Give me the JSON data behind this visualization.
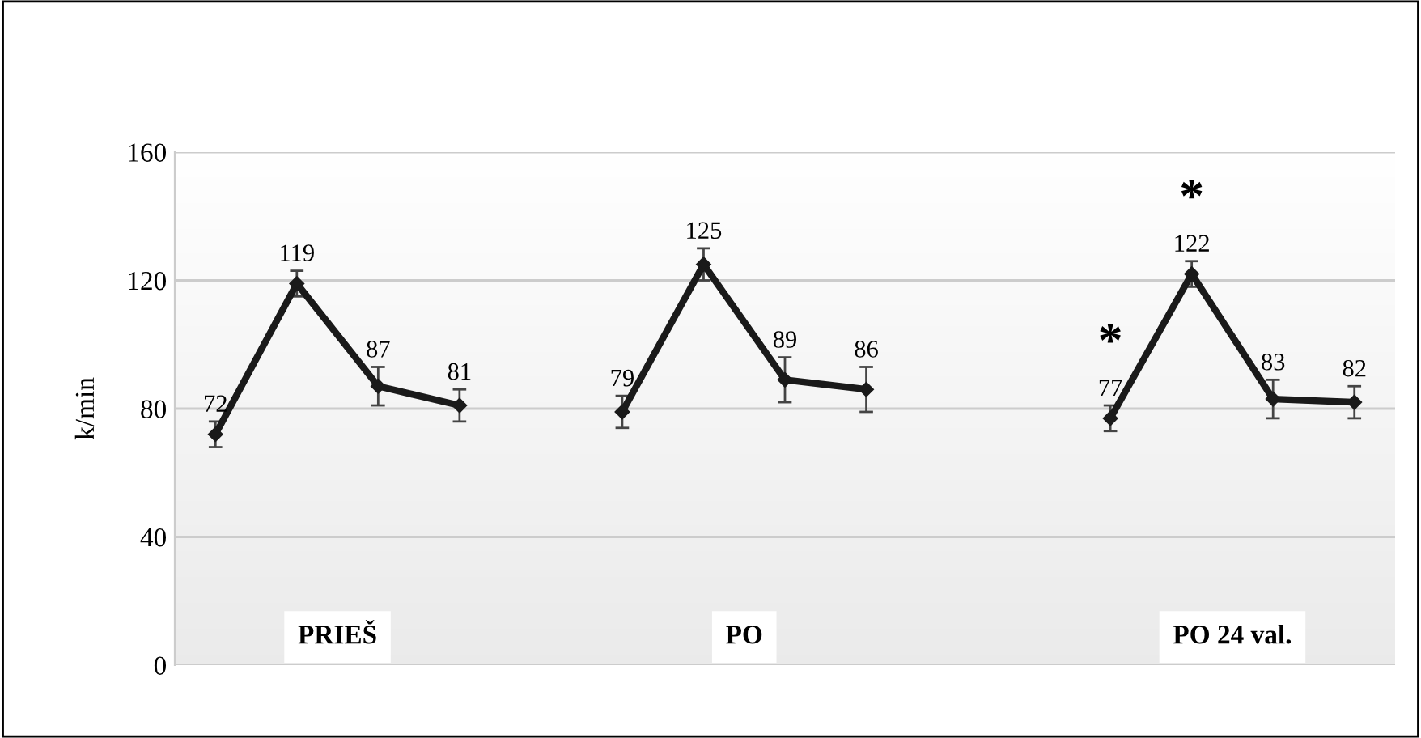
{
  "chart_data": {
    "type": "line",
    "ylabel": "k/min",
    "categories": [
      null,
      null,
      null,
      null,
      null,
      null,
      null,
      null,
      null,
      null,
      null,
      null,
      null,
      null,
      null
    ],
    "series": [
      {
        "color": "#1a1a1a",
        "values": [
          72,
          119,
          87,
          81,
          null,
          79,
          125,
          89,
          86,
          null,
          null,
          77,
          122,
          83,
          82
        ],
        "errors": [
          4,
          4,
          6,
          5,
          null,
          5,
          5,
          7,
          7,
          null,
          null,
          4,
          4,
          6,
          5
        ]
      }
    ],
    "ylim": [
      0,
      160
    ],
    "yticks": [
      0,
      40,
      80,
      120,
      160
    ],
    "grid": "y",
    "marker": "diamond",
    "line_style": "solid",
    "data_labels": true,
    "tick_labels": "y",
    "annotations": [
      "PRIEŠ",
      "PO",
      "PO 24 val.",
      "*",
      "*"
    ]
  }
}
